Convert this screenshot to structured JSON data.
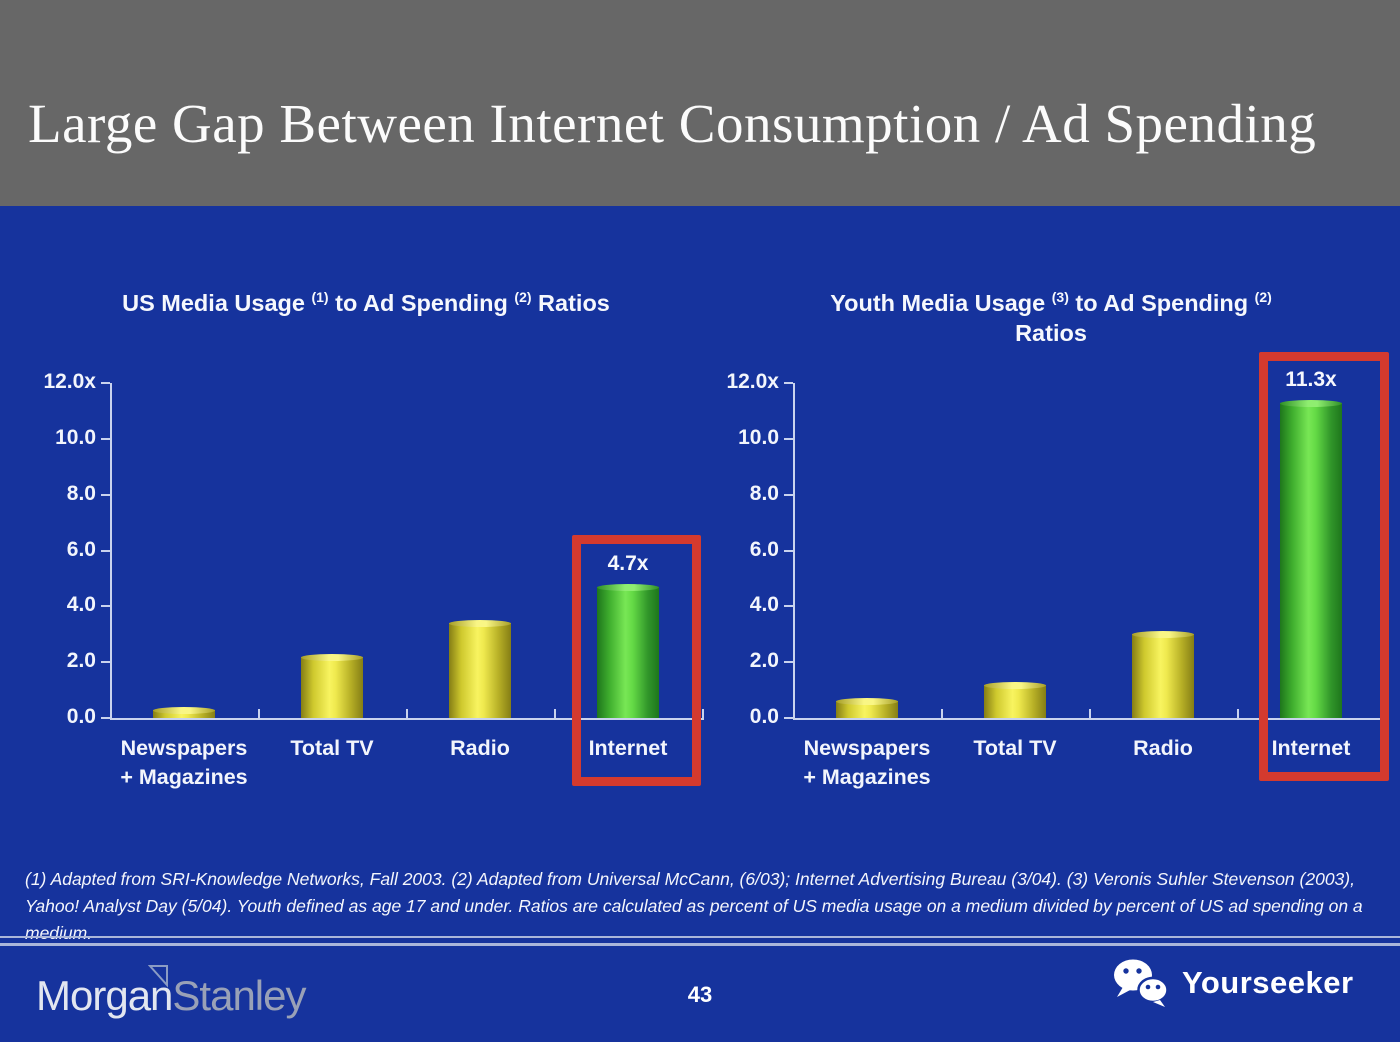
{
  "slide": {
    "title": "Large Gap Between Internet Consumption / Ad Spending",
    "page_number": "43",
    "footnote": "(1) Adapted from SRI-Knowledge Networks, Fall 2003.  (2) Adapted from Universal McCann, (6/03); Internet Advertising Bureau (3/04). (3) Veronis Suhler Stevenson (2003), Yahoo! Analyst Day (5/04).  Youth defined as age 17 and under.  Ratios are calculated as percent of US media usage on a medium divided by percent of US ad spending on a medium.",
    "brand": {
      "word1": "Morgan",
      "word2": "Stanley"
    },
    "watermark": {
      "label": "Yourseeker",
      "icon": "wechat-icon"
    }
  },
  "colors": {
    "background": "#16339d",
    "header_gray": "#676767",
    "bar_yellow": "#f4ef4e",
    "bar_green": "#66d944",
    "highlight_red": "#d43a2e",
    "axis": "#c9d3ee",
    "text": "#ffffff"
  },
  "chart_data": [
    {
      "type": "bar",
      "title": "US Media Usage (1) to Ad Spending (2) Ratios",
      "title_parts": {
        "part1": "US Media Usage ",
        "sup1": "(1)",
        "part2": " to Ad Spending ",
        "sup2": "(2)",
        "part3": " Ratios"
      },
      "title_line2": "",
      "categories": [
        "Newspapers + Magazines",
        "Total TV",
        "Radio",
        "Internet"
      ],
      "category_label_lines": [
        [
          "Newspapers",
          "+ Magazines"
        ],
        [
          "Total TV"
        ],
        [
          "Radio"
        ],
        [
          "Internet"
        ]
      ],
      "values": [
        0.3,
        2.2,
        3.4,
        4.7
      ],
      "bar_colors": [
        "yellow",
        "yellow",
        "yellow",
        "green"
      ],
      "data_labels": [
        "",
        "",
        "",
        "4.7x"
      ],
      "highlight_index": 3,
      "y_ticks": [
        {
          "value": 12,
          "label": "12.0x"
        },
        {
          "value": 10,
          "label": "10.0"
        },
        {
          "value": 8,
          "label": "8.0"
        },
        {
          "value": 6,
          "label": "6.0"
        },
        {
          "value": 4,
          "label": "4.0"
        },
        {
          "value": 2,
          "label": "2.0"
        },
        {
          "value": 0,
          "label": "0.0"
        }
      ],
      "ylim": [
        0,
        12
      ],
      "xlabel": "",
      "ylabel": "",
      "grid": false,
      "legend": "none"
    },
    {
      "type": "bar",
      "title": "Youth Media Usage (3) to Ad Spending (2) Ratios",
      "title_parts": {
        "part1": "Youth Media Usage ",
        "sup1": "(3)",
        "part2": " to Ad Spending ",
        "sup2": "(2)",
        "part3": ""
      },
      "title_line2": "Ratios",
      "categories": [
        "Newspapers + Magazines",
        "Total TV",
        "Radio",
        "Internet"
      ],
      "category_label_lines": [
        [
          "Newspapers",
          "+ Magazines"
        ],
        [
          "Total TV"
        ],
        [
          "Radio"
        ],
        [
          "Internet"
        ]
      ],
      "values": [
        0.6,
        1.2,
        3.0,
        11.3
      ],
      "bar_colors": [
        "yellow",
        "yellow",
        "yellow",
        "green"
      ],
      "data_labels": [
        "",
        "",
        "",
        "11.3x"
      ],
      "highlight_index": 3,
      "y_ticks": [
        {
          "value": 12,
          "label": "12.0x"
        },
        {
          "value": 10,
          "label": "10.0"
        },
        {
          "value": 8,
          "label": "8.0"
        },
        {
          "value": 6,
          "label": "6.0"
        },
        {
          "value": 4,
          "label": "4.0"
        },
        {
          "value": 2,
          "label": "2.0"
        },
        {
          "value": 0,
          "label": "0.0"
        }
      ],
      "ylim": [
        0,
        12
      ],
      "xlabel": "",
      "ylabel": "",
      "grid": false,
      "legend": "none"
    }
  ]
}
